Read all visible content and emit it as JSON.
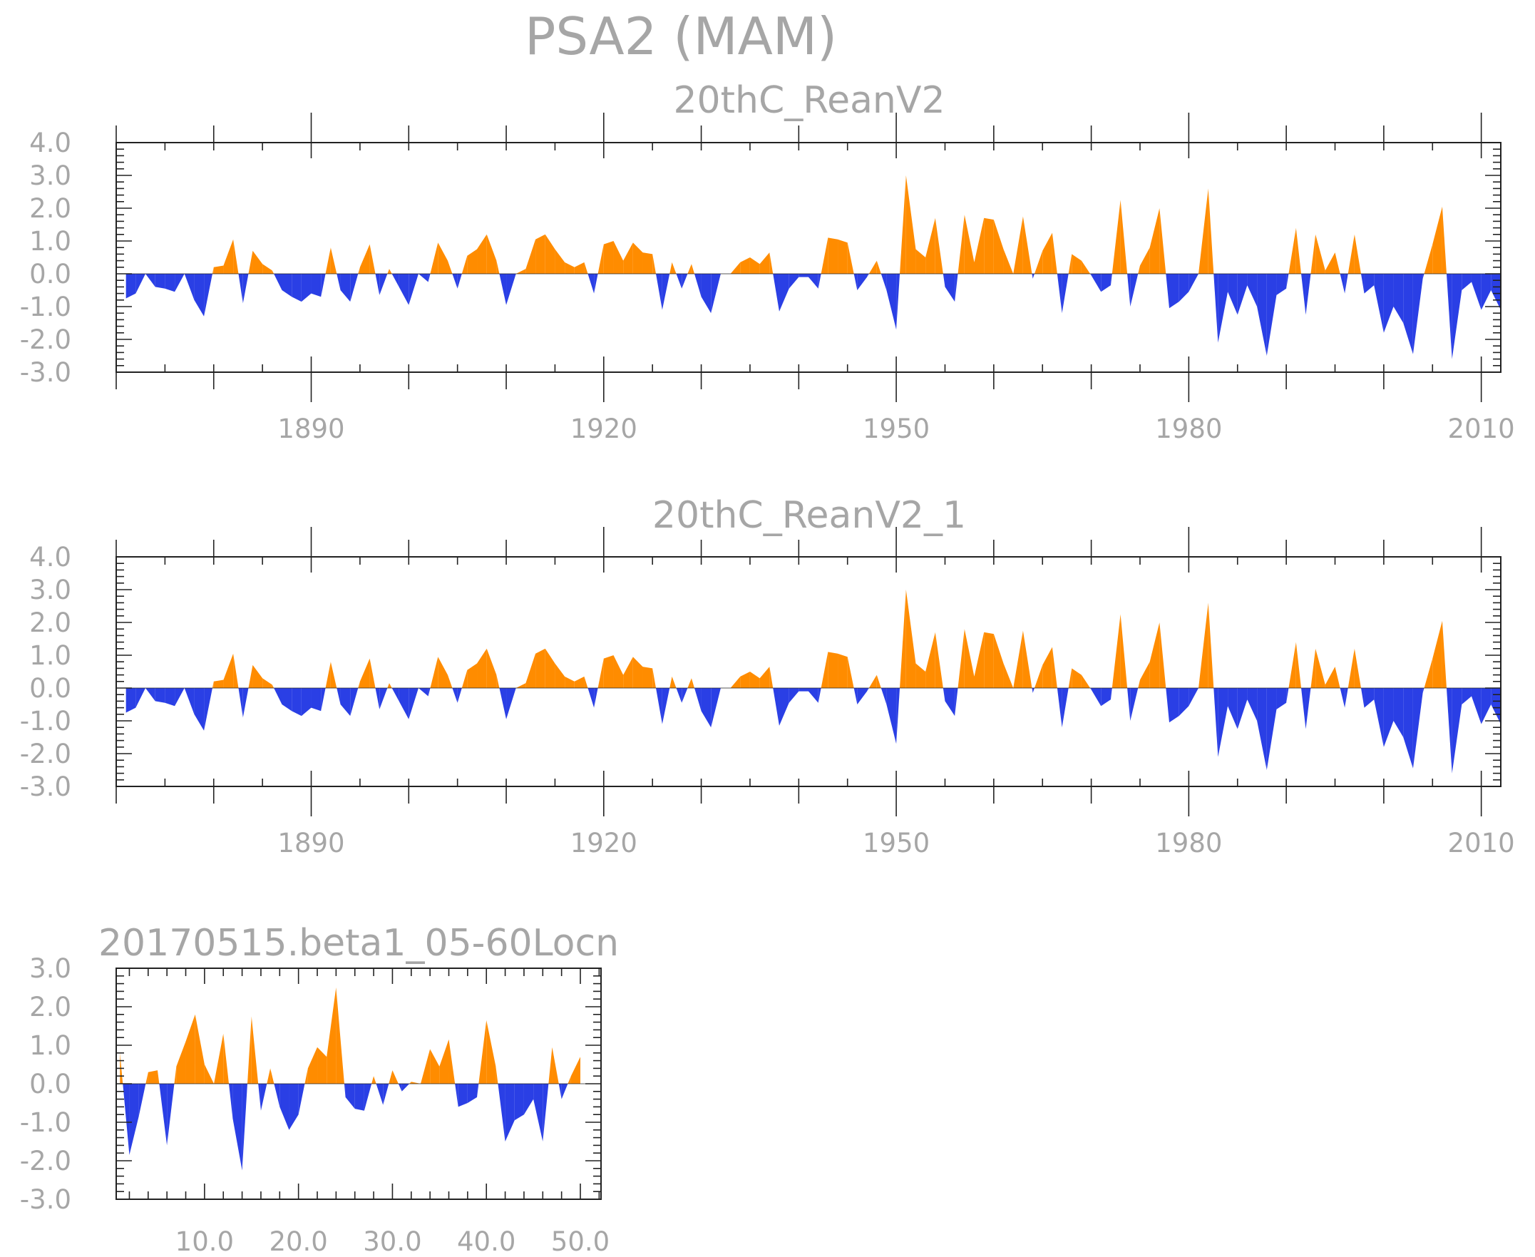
{
  "figure": {
    "title": "PSA2 (MAM)"
  },
  "colors": {
    "positive": "#ff8c00",
    "negative": "#2a3fe5",
    "axis": "#222222",
    "text": "#a6a6a6"
  },
  "chart_data": [
    {
      "type": "area",
      "title": "20thC_ReanV2",
      "x_start": 1871,
      "x_end": 2012,
      "xlim": [
        1870,
        2012
      ],
      "ylim": [
        -3.0,
        4.0
      ],
      "xticks": [
        1890,
        1920,
        1950,
        1980,
        2010
      ],
      "xtick_labels": [
        "1890",
        "1920",
        "1950",
        "1980",
        "2010"
      ],
      "yticks": [
        4.0,
        3.0,
        2.0,
        1.0,
        0.0,
        -1.0,
        -2.0,
        -3.0
      ],
      "ytick_labels": [
        "4.0",
        "3.0",
        "2.0",
        "1.0",
        "0.0",
        "-1.0",
        "-2.0",
        "-3.0"
      ],
      "values": [
        -0.75,
        -0.6,
        0.0,
        -0.4,
        -0.45,
        -0.55,
        0.0,
        -0.8,
        -1.3,
        0.2,
        0.25,
        1.05,
        -0.9,
        0.7,
        0.3,
        0.1,
        -0.5,
        -0.7,
        -0.85,
        -0.6,
        -0.7,
        0.8,
        -0.5,
        -0.85,
        0.2,
        0.9,
        -0.65,
        0.15,
        -0.4,
        -0.95,
        0.0,
        -0.25,
        0.95,
        0.4,
        -0.45,
        0.55,
        0.75,
        1.2,
        0.4,
        -0.95,
        0.0,
        0.15,
        1.05,
        1.2,
        0.75,
        0.35,
        0.2,
        0.35,
        -0.6,
        0.9,
        1.0,
        0.4,
        0.95,
        0.65,
        0.6,
        -1.1,
        0.35,
        -0.45,
        0.3,
        -0.7,
        -1.2,
        0.0,
        0.0,
        0.35,
        0.5,
        0.3,
        0.65,
        -1.15,
        -0.45,
        -0.1,
        -0.1,
        -0.45,
        1.1,
        1.05,
        0.95,
        -0.5,
        -0.1,
        0.4,
        -0.5,
        -1.7,
        3.0,
        0.75,
        0.5,
        1.7,
        -0.4,
        -0.85,
        1.8,
        0.35,
        1.7,
        1.65,
        0.75,
        0.0,
        1.75,
        -0.15,
        0.7,
        1.25,
        -1.2,
        0.6,
        0.4,
        -0.05,
        -0.55,
        -0.35,
        2.25,
        -1.0,
        0.25,
        0.8,
        2.0,
        -1.05,
        -0.85,
        -0.55,
        0.0,
        2.6,
        -2.1,
        -0.55,
        -1.25,
        -0.35,
        -1.0,
        -2.5,
        -0.65,
        -0.45,
        1.4,
        -1.25,
        1.2,
        0.1,
        0.65,
        -0.6,
        1.2,
        -0.6,
        -0.35,
        -1.8,
        -1.0,
        -1.5,
        -2.45,
        -0.15,
        0.9,
        2.05,
        -2.6,
        -0.5,
        -0.25,
        -1.1,
        -0.5,
        -1.1
      ]
    },
    {
      "type": "area",
      "title": "20thC_ReanV2_1",
      "x_start": 1871,
      "x_end": 2012,
      "xlim": [
        1870,
        2012
      ],
      "ylim": [
        -3.0,
        4.0
      ],
      "xticks": [
        1890,
        1920,
        1950,
        1980,
        2010
      ],
      "xtick_labels": [
        "1890",
        "1920",
        "1950",
        "1980",
        "2010"
      ],
      "yticks": [
        4.0,
        3.0,
        2.0,
        1.0,
        0.0,
        -1.0,
        -2.0,
        -3.0
      ],
      "ytick_labels": [
        "4.0",
        "3.0",
        "2.0",
        "1.0",
        "0.0",
        "-1.0",
        "-2.0",
        "-3.0"
      ],
      "values": [
        -0.75,
        -0.6,
        0.0,
        -0.4,
        -0.45,
        -0.55,
        0.0,
        -0.8,
        -1.3,
        0.2,
        0.25,
        1.05,
        -0.9,
        0.7,
        0.3,
        0.1,
        -0.5,
        -0.7,
        -0.85,
        -0.6,
        -0.7,
        0.8,
        -0.5,
        -0.85,
        0.2,
        0.9,
        -0.65,
        0.15,
        -0.4,
        -0.95,
        0.0,
        -0.25,
        0.95,
        0.4,
        -0.45,
        0.55,
        0.75,
        1.2,
        0.4,
        -0.95,
        0.0,
        0.15,
        1.05,
        1.2,
        0.75,
        0.35,
        0.2,
        0.35,
        -0.6,
        0.9,
        1.0,
        0.4,
        0.95,
        0.65,
        0.6,
        -1.1,
        0.35,
        -0.45,
        0.3,
        -0.7,
        -1.2,
        0.0,
        0.0,
        0.35,
        0.5,
        0.3,
        0.65,
        -1.15,
        -0.45,
        -0.1,
        -0.1,
        -0.45,
        1.1,
        1.05,
        0.95,
        -0.5,
        -0.1,
        0.4,
        -0.5,
        -1.7,
        3.0,
        0.75,
        0.5,
        1.7,
        -0.4,
        -0.85,
        1.8,
        0.35,
        1.7,
        1.65,
        0.75,
        0.0,
        1.75,
        -0.15,
        0.7,
        1.25,
        -1.2,
        0.6,
        0.4,
        -0.05,
        -0.55,
        -0.35,
        2.25,
        -1.0,
        0.25,
        0.8,
        2.0,
        -1.05,
        -0.85,
        -0.55,
        0.0,
        2.6,
        -2.1,
        -0.55,
        -1.25,
        -0.35,
        -1.0,
        -2.5,
        -0.65,
        -0.45,
        1.4,
        -1.25,
        1.2,
        0.1,
        0.65,
        -0.6,
        1.2,
        -0.6,
        -0.35,
        -1.8,
        -1.0,
        -1.5,
        -2.45,
        -0.15,
        0.9,
        2.05,
        -2.6,
        -0.5,
        -0.25,
        -1.1,
        -0.5,
        -1.1
      ]
    },
    {
      "type": "area",
      "title": "20170515.beta1_05-60Locn",
      "x_start": 1,
      "x_end": 50,
      "xlim": [
        0.6,
        52.2
      ],
      "ylim": [
        -3.0,
        3.0
      ],
      "xticks": [
        10,
        20,
        30,
        40,
        50
      ],
      "xtick_labels": [
        "10.0",
        "20.0",
        "30.0",
        "40.0",
        "50.0"
      ],
      "yticks": [
        3.0,
        2.0,
        1.0,
        0.0,
        -1.0,
        -2.0,
        -3.0
      ],
      "ytick_labels": [
        "3.0",
        "2.0",
        "1.0",
        "0.0",
        "-1.0",
        "-2.0",
        "-3.0"
      ],
      "values": [
        0.8,
        -1.85,
        -0.85,
        0.3,
        0.35,
        -1.6,
        0.45,
        1.1,
        1.8,
        0.5,
        0.0,
        1.3,
        -0.9,
        -2.25,
        1.75,
        -0.7,
        0.4,
        -0.6,
        -1.2,
        -0.8,
        0.4,
        0.95,
        0.7,
        2.5,
        -0.35,
        -0.65,
        -0.7,
        0.2,
        -0.55,
        0.35,
        -0.2,
        0.05,
        0.0,
        0.9,
        0.45,
        1.15,
        -0.6,
        -0.5,
        -0.35,
        1.65,
        0.45,
        -1.5,
        -0.95,
        -0.8,
        -0.4,
        -1.5,
        0.95,
        -0.4,
        0.2,
        0.7
      ]
    }
  ]
}
